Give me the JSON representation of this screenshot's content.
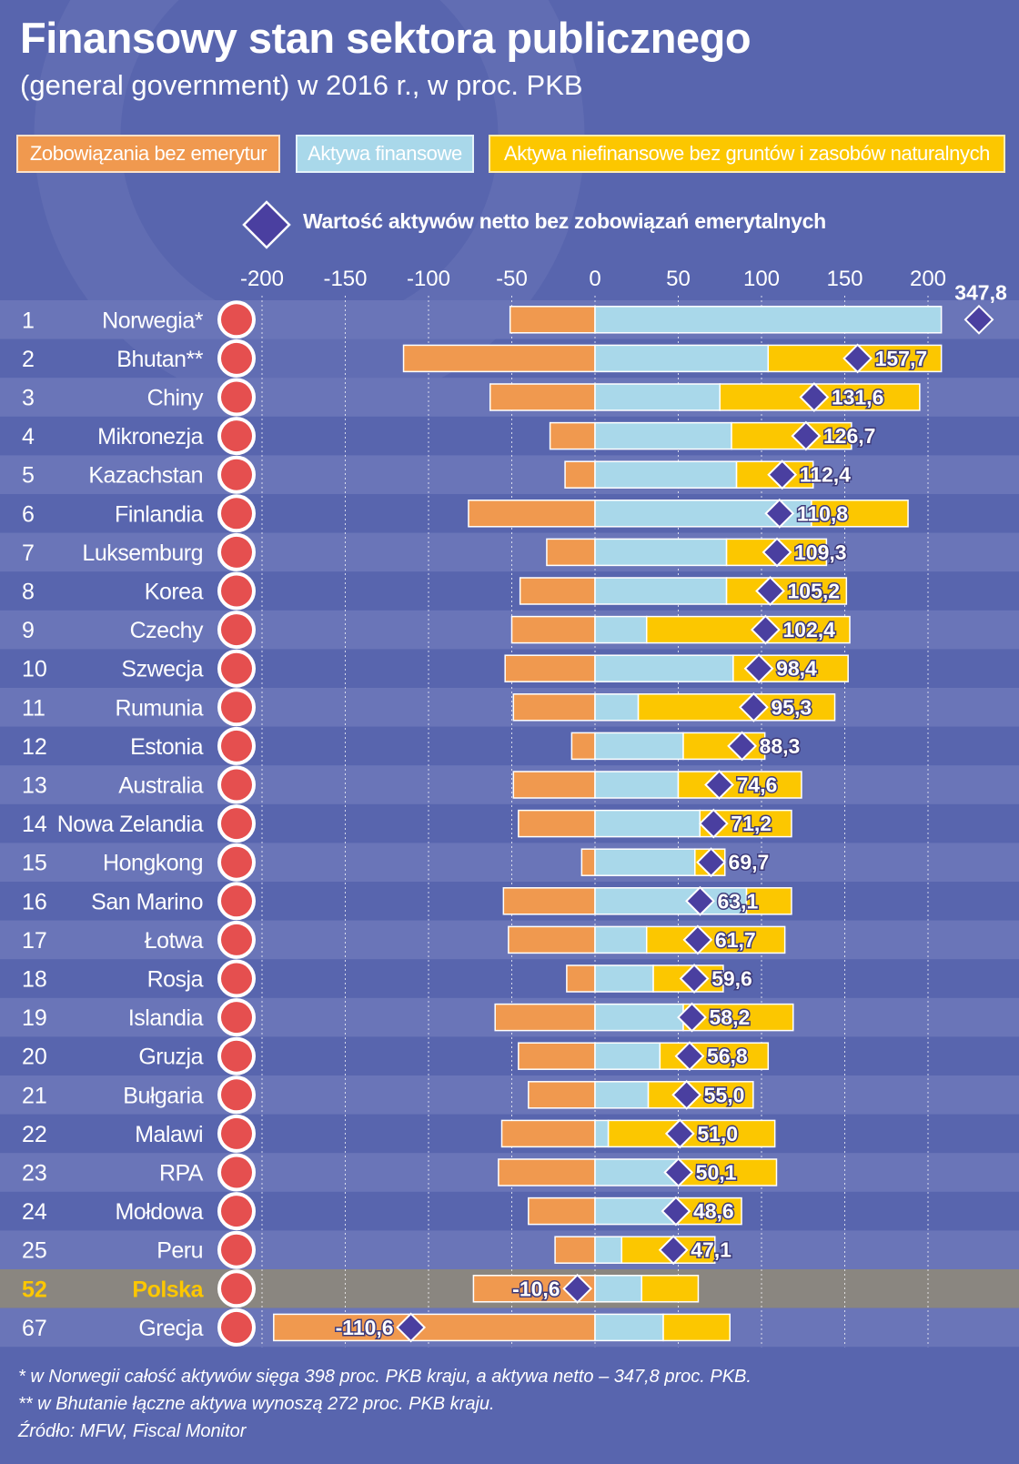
{
  "title": "Finansowy stan sektora publicznego",
  "subtitle": "(general government) w 2016 r., w proc. PKB",
  "legend": {
    "liabilities": "Zobowiązania bez emerytur",
    "financial_assets": "Aktywa finansowe",
    "nonfinancial_assets": "Aktywa niefinansowe bez gruntów i zasobów naturalnych",
    "net_value": "Wartość aktywów netto bez zobowiązań emerytalnych"
  },
  "colors": {
    "background": "#5865ae",
    "stripe": "#6a75b8",
    "highlight_row": "#8a8680",
    "liabilities": "#f0994f",
    "financial_assets": "#a9d8ea",
    "nonfinancial_assets": "#fcc700",
    "diamond": "#4a3fa0",
    "highlight_text": "#fcc700"
  },
  "chart_data": {
    "type": "bar",
    "orientation": "horizontal",
    "stacked": true,
    "xlim": [
      -200,
      200
    ],
    "xticks": [
      -200,
      -150,
      -100,
      -50,
      0,
      50,
      100,
      150,
      200
    ],
    "grid": true,
    "legend_position": "top",
    "rows": [
      {
        "rank": "1",
        "country": "Norwegia*",
        "flag": "norway-flag",
        "liabilities": -51,
        "financial": 208,
        "nonfinancial": 0,
        "net": 347.8,
        "net_label": "347,8",
        "overflow": true
      },
      {
        "rank": "2",
        "country": "Bhutan**",
        "flag": "bhutan-flag",
        "liabilities": -115,
        "financial": 104,
        "nonfinancial": 104,
        "net": 157.7,
        "net_label": "157,7",
        "overflow": true
      },
      {
        "rank": "3",
        "country": "Chiny",
        "flag": "china-flag",
        "liabilities": -63,
        "financial": 75,
        "nonfinancial": 120,
        "net": 131.6,
        "net_label": "131,6"
      },
      {
        "rank": "4",
        "country": "Mikronezja",
        "flag": "micronesia-flag",
        "liabilities": -27,
        "financial": 82,
        "nonfinancial": 72,
        "net": 126.7,
        "net_label": "126,7"
      },
      {
        "rank": "5",
        "country": "Kazachstan",
        "flag": "kazakhstan-flag",
        "liabilities": -18,
        "financial": 85,
        "nonfinancial": 46,
        "net": 112.4,
        "net_label": "112,4"
      },
      {
        "rank": "6",
        "country": "Finlandia",
        "flag": "finland-flag",
        "liabilities": -76,
        "financial": 130,
        "nonfinancial": 58,
        "net": 110.8,
        "net_label": "110,8"
      },
      {
        "rank": "7",
        "country": "Luksemburg",
        "flag": "luxembourg-flag",
        "liabilities": -29,
        "financial": 79,
        "nonfinancial": 60,
        "net": 109.3,
        "net_label": "109,3"
      },
      {
        "rank": "8",
        "country": "Korea",
        "flag": "korea-flag",
        "liabilities": -45,
        "financial": 79,
        "nonfinancial": 72,
        "net": 105.2,
        "net_label": "105,2"
      },
      {
        "rank": "9",
        "country": "Czechy",
        "flag": "czech-flag",
        "liabilities": -50,
        "financial": 31,
        "nonfinancial": 122,
        "net": 102.4,
        "net_label": "102,4"
      },
      {
        "rank": "10",
        "country": "Szwecja",
        "flag": "sweden-flag",
        "liabilities": -54,
        "financial": 83,
        "nonfinancial": 69,
        "net": 98.4,
        "net_label": "98,4"
      },
      {
        "rank": "11",
        "country": "Rumunia",
        "flag": "romania-flag",
        "liabilities": -49,
        "financial": 26,
        "nonfinancial": 118,
        "net": 95.3,
        "net_label": "95,3"
      },
      {
        "rank": "12",
        "country": "Estonia",
        "flag": "estonia-flag",
        "liabilities": -14,
        "financial": 53,
        "nonfinancial": 49,
        "net": 88.3,
        "net_label": "88,3"
      },
      {
        "rank": "13",
        "country": "Australia",
        "flag": "australia-flag",
        "liabilities": -49,
        "financial": 50,
        "nonfinancial": 74,
        "net": 74.6,
        "net_label": "74,6"
      },
      {
        "rank": "14",
        "country": "Nowa Zelandia",
        "flag": "new-zealand-flag",
        "liabilities": -46,
        "financial": 63,
        "nonfinancial": 55,
        "net": 71.2,
        "net_label": "71,2"
      },
      {
        "rank": "15",
        "country": "Hongkong",
        "flag": "hongkong-flag",
        "liabilities": -8,
        "financial": 60,
        "nonfinancial": 18,
        "net": 69.7,
        "net_label": "69,7"
      },
      {
        "rank": "16",
        "country": "San Marino",
        "flag": "san-marino-flag",
        "liabilities": -55,
        "financial": 91,
        "nonfinancial": 27,
        "net": 63.1,
        "net_label": "63,1"
      },
      {
        "rank": "17",
        "country": "Łotwa",
        "flag": "latvia-flag",
        "liabilities": -52,
        "financial": 31,
        "nonfinancial": 83,
        "net": 61.7,
        "net_label": "61,7"
      },
      {
        "rank": "18",
        "country": "Rosja",
        "flag": "russia-flag",
        "liabilities": -17,
        "financial": 35,
        "nonfinancial": 42,
        "net": 59.6,
        "net_label": "59,6"
      },
      {
        "rank": "19",
        "country": "Islandia",
        "flag": "iceland-flag",
        "liabilities": -60,
        "financial": 53,
        "nonfinancial": 66,
        "net": 58.2,
        "net_label": "58,2"
      },
      {
        "rank": "20",
        "country": "Gruzja",
        "flag": "georgia-flag",
        "liabilities": -46,
        "financial": 39,
        "nonfinancial": 65,
        "net": 56.8,
        "net_label": "56,8"
      },
      {
        "rank": "21",
        "country": "Bułgaria",
        "flag": "bulgaria-flag",
        "liabilities": -40,
        "financial": 32,
        "nonfinancial": 63,
        "net": 55.0,
        "net_label": "55,0"
      },
      {
        "rank": "22",
        "country": "Malawi",
        "flag": "malawi-flag",
        "liabilities": -56,
        "financial": 8,
        "nonfinancial": 100,
        "net": 51.0,
        "net_label": "51,0"
      },
      {
        "rank": "23",
        "country": "RPA",
        "flag": "south-africa-flag",
        "liabilities": -58,
        "financial": 50,
        "nonfinancial": 59,
        "net": 50.1,
        "net_label": "50,1"
      },
      {
        "rank": "24",
        "country": "Mołdowa",
        "flag": "moldova-flag",
        "liabilities": -40,
        "financial": 48,
        "nonfinancial": 40,
        "net": 48.6,
        "net_label": "48,6"
      },
      {
        "rank": "25",
        "country": "Peru",
        "flag": "peru-flag",
        "liabilities": -24,
        "financial": 16,
        "nonfinancial": 56,
        "net": 47.1,
        "net_label": "47,1"
      },
      {
        "rank": "52",
        "country": "Polska",
        "flag": "poland-flag",
        "liabilities": -73,
        "financial": 28,
        "nonfinancial": 34,
        "net": -10.6,
        "net_label": "-10,6",
        "highlight": true
      },
      {
        "rank": "67",
        "country": "Grecja",
        "flag": "greece-flag",
        "liabilities": -193,
        "financial": 41,
        "nonfinancial": 40,
        "net": -110.6,
        "net_label": "-110,6"
      }
    ]
  },
  "footnotes": [
    "* w Norwegii całość aktywów sięga 398 proc. PKB kraju, a aktywa netto – 347,8 proc. PKB.",
    "** w Bhutanie łączne aktywa wynoszą 272 proc. PKB kraju.",
    "Źródło: MFW, Fiscal Monitor"
  ]
}
